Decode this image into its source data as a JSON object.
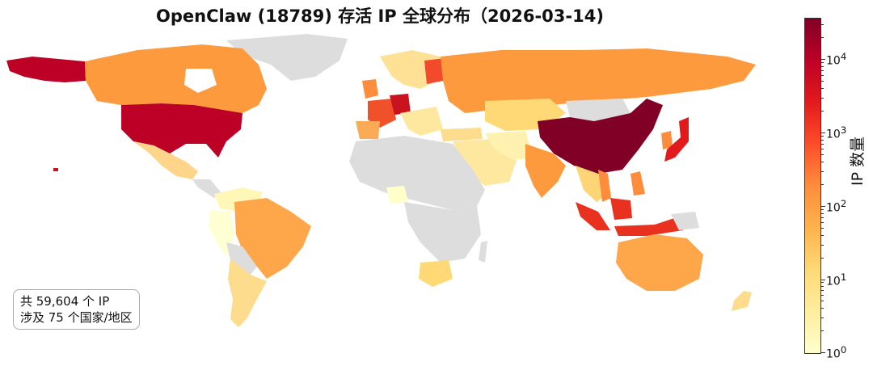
{
  "title": "OpenClaw (18789) 存活 IP 全球分布（2026-03-14)",
  "info": {
    "line1": "共 59,604 个 IP",
    "line2": "涉及 75 个国家/地区"
  },
  "colorbar": {
    "label": "IP 数量",
    "scale": "log",
    "range": [
      1,
      30000
    ],
    "ticks": [
      {
        "base": "10",
        "exp": "0"
      },
      {
        "base": "10",
        "exp": "1"
      },
      {
        "base": "10",
        "exp": "2"
      },
      {
        "base": "10",
        "exp": "3"
      },
      {
        "base": "10",
        "exp": "4"
      }
    ],
    "colors": [
      "#ffffcc",
      "#ffeda0",
      "#fed976",
      "#feb24c",
      "#fd8d3c",
      "#fc4e2a",
      "#e31a1c",
      "#bd0026",
      "#800026"
    ]
  },
  "map": {
    "no_data_color": "#dddddd",
    "regions": [
      {
        "name": "China",
        "level": "10^4+"
      },
      {
        "name": "United States",
        "level": "10^3-10^4"
      },
      {
        "name": "Alaska",
        "level": "10^3-10^4"
      },
      {
        "name": "Japan",
        "level": "10^3"
      },
      {
        "name": "Germany",
        "level": "10^3"
      },
      {
        "name": "Indonesia",
        "level": "10^3"
      },
      {
        "name": "Singapore",
        "level": "10^3"
      },
      {
        "name": "France",
        "level": "10^2-10^3"
      },
      {
        "name": "Finland",
        "level": "10^2-10^3"
      },
      {
        "name": "Netherlands",
        "level": "10^2-10^3"
      },
      {
        "name": "Canada",
        "level": "10^2"
      },
      {
        "name": "Russia",
        "level": "10^2"
      },
      {
        "name": "India",
        "level": "10^2"
      },
      {
        "name": "Brazil",
        "level": "10^2"
      },
      {
        "name": "Australia",
        "level": "10^2"
      },
      {
        "name": "Sweden",
        "level": "10^2"
      },
      {
        "name": "United Kingdom",
        "level": "10^2"
      },
      {
        "name": "Vietnam",
        "level": "10^2"
      },
      {
        "name": "South Korea",
        "level": "10^2"
      },
      {
        "name": "Philippines",
        "level": "10^2"
      },
      {
        "name": "Kazakhstan",
        "level": "10^1-10^2"
      },
      {
        "name": "Argentina",
        "level": "10^1"
      },
      {
        "name": "Mexico",
        "level": "10^1"
      },
      {
        "name": "South Africa",
        "level": "10^1"
      },
      {
        "name": "Saudi Arabia",
        "level": "10^1"
      },
      {
        "name": "Turkey",
        "level": "10^1"
      },
      {
        "name": "New Zealand",
        "level": "10^1"
      },
      {
        "name": "Chile",
        "level": "10^1"
      },
      {
        "name": "Colombia",
        "level": "10^0-10^1"
      },
      {
        "name": "Peru",
        "level": "10^0"
      },
      {
        "name": "Nigeria",
        "level": "10^0"
      }
    ]
  }
}
